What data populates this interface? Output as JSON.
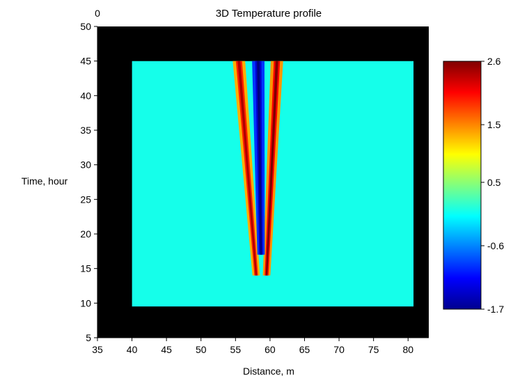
{
  "chart_data": {
    "type": "heatmap",
    "corner_label": "0",
    "title": "3D Temperature profile",
    "xlabel": "Distance, m",
    "ylabel": "Time, hour",
    "xlim": [
      35,
      83
    ],
    "ylim": [
      5,
      50
    ],
    "x_ticks": [
      "35",
      "40",
      "45",
      "50",
      "55",
      "60",
      "65",
      "70",
      "75",
      "80"
    ],
    "y_ticks": [
      "5",
      "10",
      "15",
      "20",
      "25",
      "30",
      "35",
      "40",
      "45",
      "50"
    ],
    "data_extent": {
      "x": [
        40,
        80.8
      ],
      "y": [
        9.5,
        45
      ]
    },
    "background_color": "#000000",
    "colormap": "jet",
    "colorbar": {
      "min": -1.7,
      "max": 2.6,
      "tick_labels": [
        "2.6",
        "1.5",
        "0.5",
        "-0.6",
        "-1.7"
      ],
      "tick_values": [
        2.6,
        1.5,
        0.5,
        -0.6,
        -1.7
      ]
    },
    "features": [
      {
        "kind": "hot_band",
        "x_top": 55.5,
        "x_bottom": 58.0,
        "y_from": 14,
        "y_to": 45,
        "peak": 2.4
      },
      {
        "kind": "hot_band",
        "x_top": 61.0,
        "x_bottom": 59.5,
        "y_from": 14,
        "y_to": 45,
        "peak": 2.6
      },
      {
        "kind": "cold_band",
        "x_top": 58.3,
        "x_bottom": 58.7,
        "y_from": 17,
        "y_to": 45,
        "peak": -1.7
      }
    ],
    "baseline_value": 0.0
  }
}
